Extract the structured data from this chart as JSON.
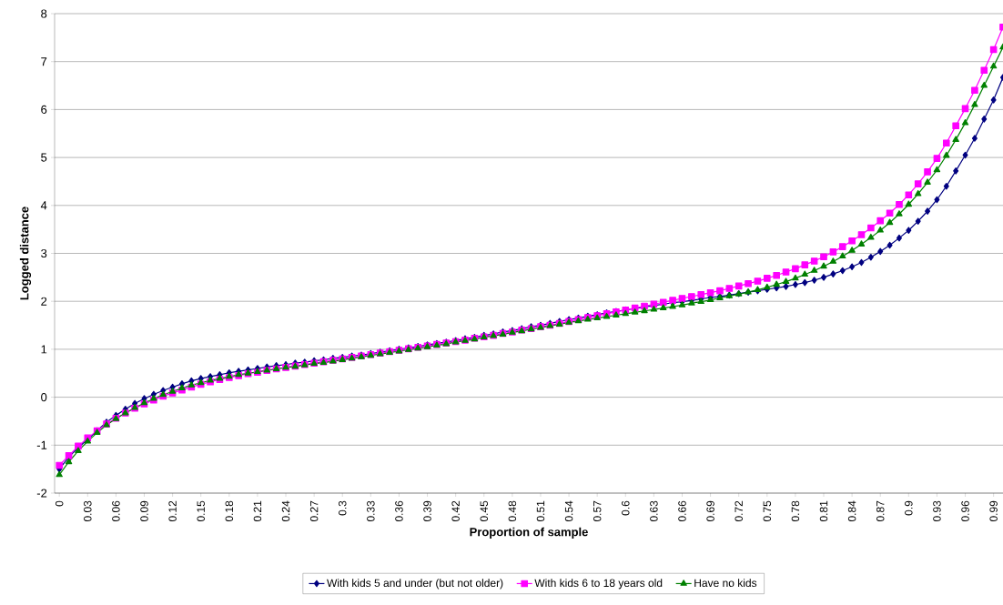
{
  "chart_data": {
    "type": "line",
    "xlabel": "Proportion of sample",
    "ylabel": "Logged distance",
    "x": [
      0,
      0.01,
      0.02,
      0.03,
      0.04,
      0.05,
      0.06,
      0.07,
      0.08,
      0.09,
      0.1,
      0.11,
      0.12,
      0.13,
      0.14,
      0.15,
      0.16,
      0.17,
      0.18,
      0.19,
      0.2,
      0.21,
      0.22,
      0.23,
      0.24,
      0.25,
      0.26,
      0.27,
      0.28,
      0.29,
      0.3,
      0.31,
      0.32,
      0.33,
      0.34,
      0.35,
      0.36,
      0.37,
      0.38,
      0.39,
      0.4,
      0.41,
      0.42,
      0.43,
      0.44,
      0.45,
      0.46,
      0.47,
      0.48,
      0.49,
      0.5,
      0.51,
      0.52,
      0.53,
      0.54,
      0.55,
      0.56,
      0.57,
      0.58,
      0.59,
      0.6,
      0.61,
      0.62,
      0.63,
      0.64,
      0.65,
      0.66,
      0.67,
      0.68,
      0.69,
      0.7,
      0.71,
      0.72,
      0.73,
      0.74,
      0.75,
      0.76,
      0.77,
      0.78,
      0.79,
      0.8,
      0.81,
      0.82,
      0.83,
      0.84,
      0.85,
      0.86,
      0.87,
      0.88,
      0.89,
      0.9,
      0.91,
      0.92,
      0.93,
      0.94,
      0.95,
      0.96,
      0.97,
      0.98,
      0.99,
      1.0
    ],
    "series": [
      {
        "name": "With kids 5 and under (but not older)",
        "color": "#000080",
        "marker": "diamond",
        "values": [
          -1.5,
          -1.25,
          -1.05,
          -0.88,
          -0.7,
          -0.52,
          -0.38,
          -0.25,
          -0.13,
          -0.03,
          0.06,
          0.14,
          0.21,
          0.28,
          0.34,
          0.39,
          0.43,
          0.47,
          0.51,
          0.54,
          0.57,
          0.6,
          0.63,
          0.66,
          0.68,
          0.71,
          0.73,
          0.76,
          0.78,
          0.81,
          0.83,
          0.86,
          0.88,
          0.91,
          0.94,
          0.97,
          1.0,
          1.03,
          1.06,
          1.09,
          1.12,
          1.15,
          1.18,
          1.22,
          1.25,
          1.29,
          1.32,
          1.36,
          1.39,
          1.43,
          1.47,
          1.5,
          1.54,
          1.58,
          1.62,
          1.65,
          1.69,
          1.72,
          1.76,
          1.79,
          1.82,
          1.85,
          1.88,
          1.91,
          1.94,
          1.97,
          1.99,
          2.02,
          2.05,
          2.08,
          2.1,
          2.13,
          2.16,
          2.19,
          2.22,
          2.25,
          2.28,
          2.31,
          2.35,
          2.39,
          2.44,
          2.5,
          2.57,
          2.64,
          2.72,
          2.81,
          2.92,
          3.04,
          3.17,
          3.32,
          3.48,
          3.67,
          3.88,
          4.12,
          4.4,
          4.72,
          5.05,
          5.4,
          5.8,
          6.2,
          6.67
        ]
      },
      {
        "name": "With kids 6 to 18 years old",
        "color": "#ff00ff",
        "marker": "square",
        "values": [
          -1.42,
          -1.22,
          -1.02,
          -0.85,
          -0.7,
          -0.56,
          -0.44,
          -0.33,
          -0.23,
          -0.14,
          -0.06,
          0.02,
          0.09,
          0.15,
          0.21,
          0.27,
          0.32,
          0.37,
          0.41,
          0.45,
          0.49,
          0.52,
          0.56,
          0.59,
          0.62,
          0.65,
          0.68,
          0.71,
          0.74,
          0.77,
          0.8,
          0.83,
          0.86,
          0.89,
          0.92,
          0.95,
          0.98,
          1.01,
          1.04,
          1.07,
          1.1,
          1.13,
          1.16,
          1.19,
          1.23,
          1.26,
          1.29,
          1.33,
          1.36,
          1.4,
          1.43,
          1.47,
          1.5,
          1.54,
          1.58,
          1.62,
          1.66,
          1.7,
          1.74,
          1.78,
          1.82,
          1.86,
          1.9,
          1.94,
          1.98,
          2.02,
          2.06,
          2.1,
          2.14,
          2.18,
          2.22,
          2.27,
          2.32,
          2.37,
          2.42,
          2.48,
          2.54,
          2.61,
          2.68,
          2.76,
          2.84,
          2.93,
          3.03,
          3.14,
          3.26,
          3.39,
          3.53,
          3.68,
          3.84,
          4.02,
          4.22,
          4.45,
          4.7,
          4.98,
          5.3,
          5.66,
          6.02,
          6.4,
          6.82,
          7.25,
          7.72
        ]
      },
      {
        "name": "Have no kids",
        "color": "#008000",
        "marker": "triangle",
        "values": [
          -1.62,
          -1.35,
          -1.12,
          -0.92,
          -0.74,
          -0.58,
          -0.45,
          -0.33,
          -0.22,
          -0.12,
          -0.03,
          0.05,
          0.12,
          0.19,
          0.25,
          0.3,
          0.35,
          0.39,
          0.43,
          0.47,
          0.5,
          0.53,
          0.56,
          0.59,
          0.62,
          0.64,
          0.67,
          0.7,
          0.72,
          0.75,
          0.78,
          0.81,
          0.84,
          0.87,
          0.9,
          0.93,
          0.96,
          0.99,
          1.02,
          1.05,
          1.08,
          1.11,
          1.15,
          1.18,
          1.21,
          1.25,
          1.28,
          1.31,
          1.35,
          1.38,
          1.42,
          1.45,
          1.49,
          1.52,
          1.56,
          1.59,
          1.62,
          1.65,
          1.68,
          1.71,
          1.74,
          1.77,
          1.8,
          1.83,
          1.86,
          1.89,
          1.92,
          1.96,
          1.99,
          2.03,
          2.07,
          2.11,
          2.15,
          2.19,
          2.24,
          2.29,
          2.35,
          2.41,
          2.48,
          2.56,
          2.64,
          2.73,
          2.83,
          2.94,
          3.06,
          3.19,
          3.33,
          3.48,
          3.64,
          3.82,
          4.02,
          4.24,
          4.48,
          4.74,
          5.04,
          5.37,
          5.72,
          6.1,
          6.5,
          6.9,
          7.3
        ]
      }
    ],
    "xlim": [
      -0.005,
      1.0
    ],
    "xticks": [
      0,
      0.03,
      0.06,
      0.09,
      0.12,
      0.15,
      0.18,
      0.21,
      0.24,
      0.27,
      0.3,
      0.33,
      0.36,
      0.39,
      0.42,
      0.45,
      0.48,
      0.51,
      0.54,
      0.57,
      0.6,
      0.63,
      0.66,
      0.69,
      0.72,
      0.75,
      0.78,
      0.81,
      0.84,
      0.87,
      0.9,
      0.93,
      0.96,
      0.99
    ],
    "ylim": [
      -2,
      8
    ],
    "yticks": [
      -2,
      -1,
      0,
      1,
      2,
      3,
      4,
      5,
      6,
      7,
      8
    ],
    "grid": "y",
    "legend": "bottom",
    "line_style": "solid"
  }
}
